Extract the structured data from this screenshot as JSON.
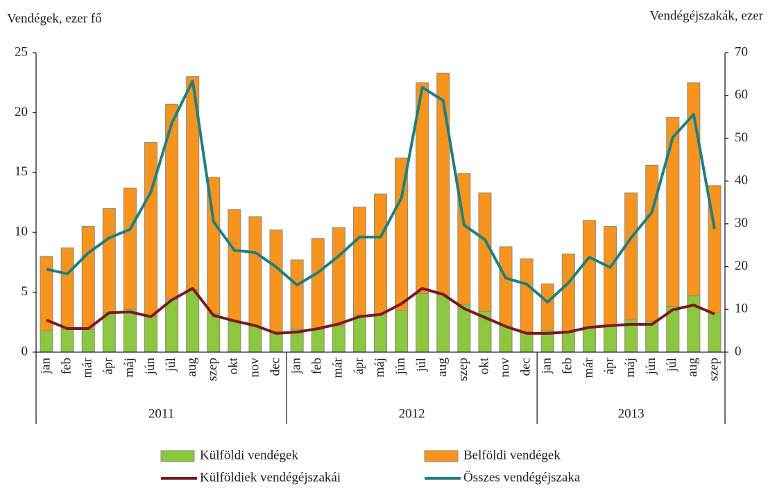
{
  "chart_data": {
    "type": "bar-line",
    "y_label": "Vendégek, ezer fő",
    "y2_label": "Vendégéjszakák, ezer",
    "category_groups": [
      {
        "name": "2011",
        "categories": [
          "jan",
          "feb",
          "már",
          "ápr",
          "máj",
          "jún",
          "júl",
          "aug",
          "szep",
          "okt",
          "nov",
          "dec"
        ]
      },
      {
        "name": "2012",
        "categories": [
          "jan",
          "feb",
          "már",
          "ápr",
          "máj",
          "jún",
          "júl",
          "aug",
          "szep",
          "okt",
          "nov",
          "dec"
        ]
      },
      {
        "name": "2013",
        "categories": [
          "jan",
          "feb",
          "már",
          "ápr",
          "máj",
          "jún",
          "júl",
          "aug",
          "szep"
        ]
      }
    ],
    "series": [
      {
        "name": "Külföldi vendégek",
        "type": "bar",
        "color": "#8dc63f",
        "values": [
          1.8,
          1.9,
          1.9,
          3.3,
          3.6,
          3.0,
          4.4,
          5.2,
          3.2,
          2.6,
          2.2,
          1.7,
          1.9,
          1.9,
          2.2,
          3.1,
          3.1,
          3.5,
          4.9,
          4.8,
          4.0,
          3.4,
          2.2,
          1.7,
          1.8,
          1.7,
          2.1,
          2.2,
          2.7,
          2.6,
          3.8,
          4.7,
          3.3
        ]
      },
      {
        "name": "Belföldi vendégek",
        "type": "bar",
        "color": "#f7941d",
        "values": [
          6.2,
          6.8,
          8.6,
          8.7,
          10.1,
          14.5,
          16.3,
          17.8,
          11.4,
          9.3,
          9.1,
          8.5,
          5.8,
          7.6,
          8.2,
          9.0,
          10.1,
          12.7,
          17.6,
          18.5,
          10.9,
          9.9,
          6.6,
          6.1,
          3.9,
          6.5,
          8.9,
          8.3,
          10.6,
          13.0,
          15.8,
          17.8,
          10.6
        ]
      },
      {
        "name": "Külföldiek vendégéjszakái",
        "type": "line",
        "axis": "y2",
        "color": "#7b1a1a",
        "values": [
          7.5,
          5.5,
          5.5,
          9.2,
          9.4,
          8.3,
          12.2,
          14.9,
          8.6,
          7.3,
          6.2,
          4.4,
          4.7,
          5.5,
          6.6,
          8.3,
          8.8,
          11.3,
          14.9,
          13.5,
          10.2,
          8.1,
          6.0,
          4.4,
          4.4,
          4.7,
          5.8,
          6.2,
          6.5,
          6.5,
          9.9,
          11.0,
          8.9
        ]
      },
      {
        "name": "Összes vendégéjszaka",
        "type": "line",
        "axis": "y2",
        "color": "#1f7f7f",
        "values": [
          19.4,
          18.3,
          23.2,
          26.7,
          28.7,
          37.4,
          53.5,
          63.4,
          30.5,
          23.8,
          23.3,
          19.9,
          15.7,
          18.6,
          22.5,
          26.9,
          26.9,
          36.0,
          61.9,
          58.8,
          29.7,
          26.3,
          17.3,
          15.9,
          11.7,
          16.2,
          22.2,
          19.8,
          26.7,
          32.7,
          50.2,
          55.6,
          28.8
        ]
      }
    ],
    "ylim": [
      0,
      25
    ],
    "yticks": [
      0,
      5,
      10,
      15,
      20,
      25
    ],
    "y2lim": [
      0,
      70
    ],
    "y2ticks": [
      0,
      10,
      20,
      30,
      40,
      50,
      60,
      70
    ]
  }
}
